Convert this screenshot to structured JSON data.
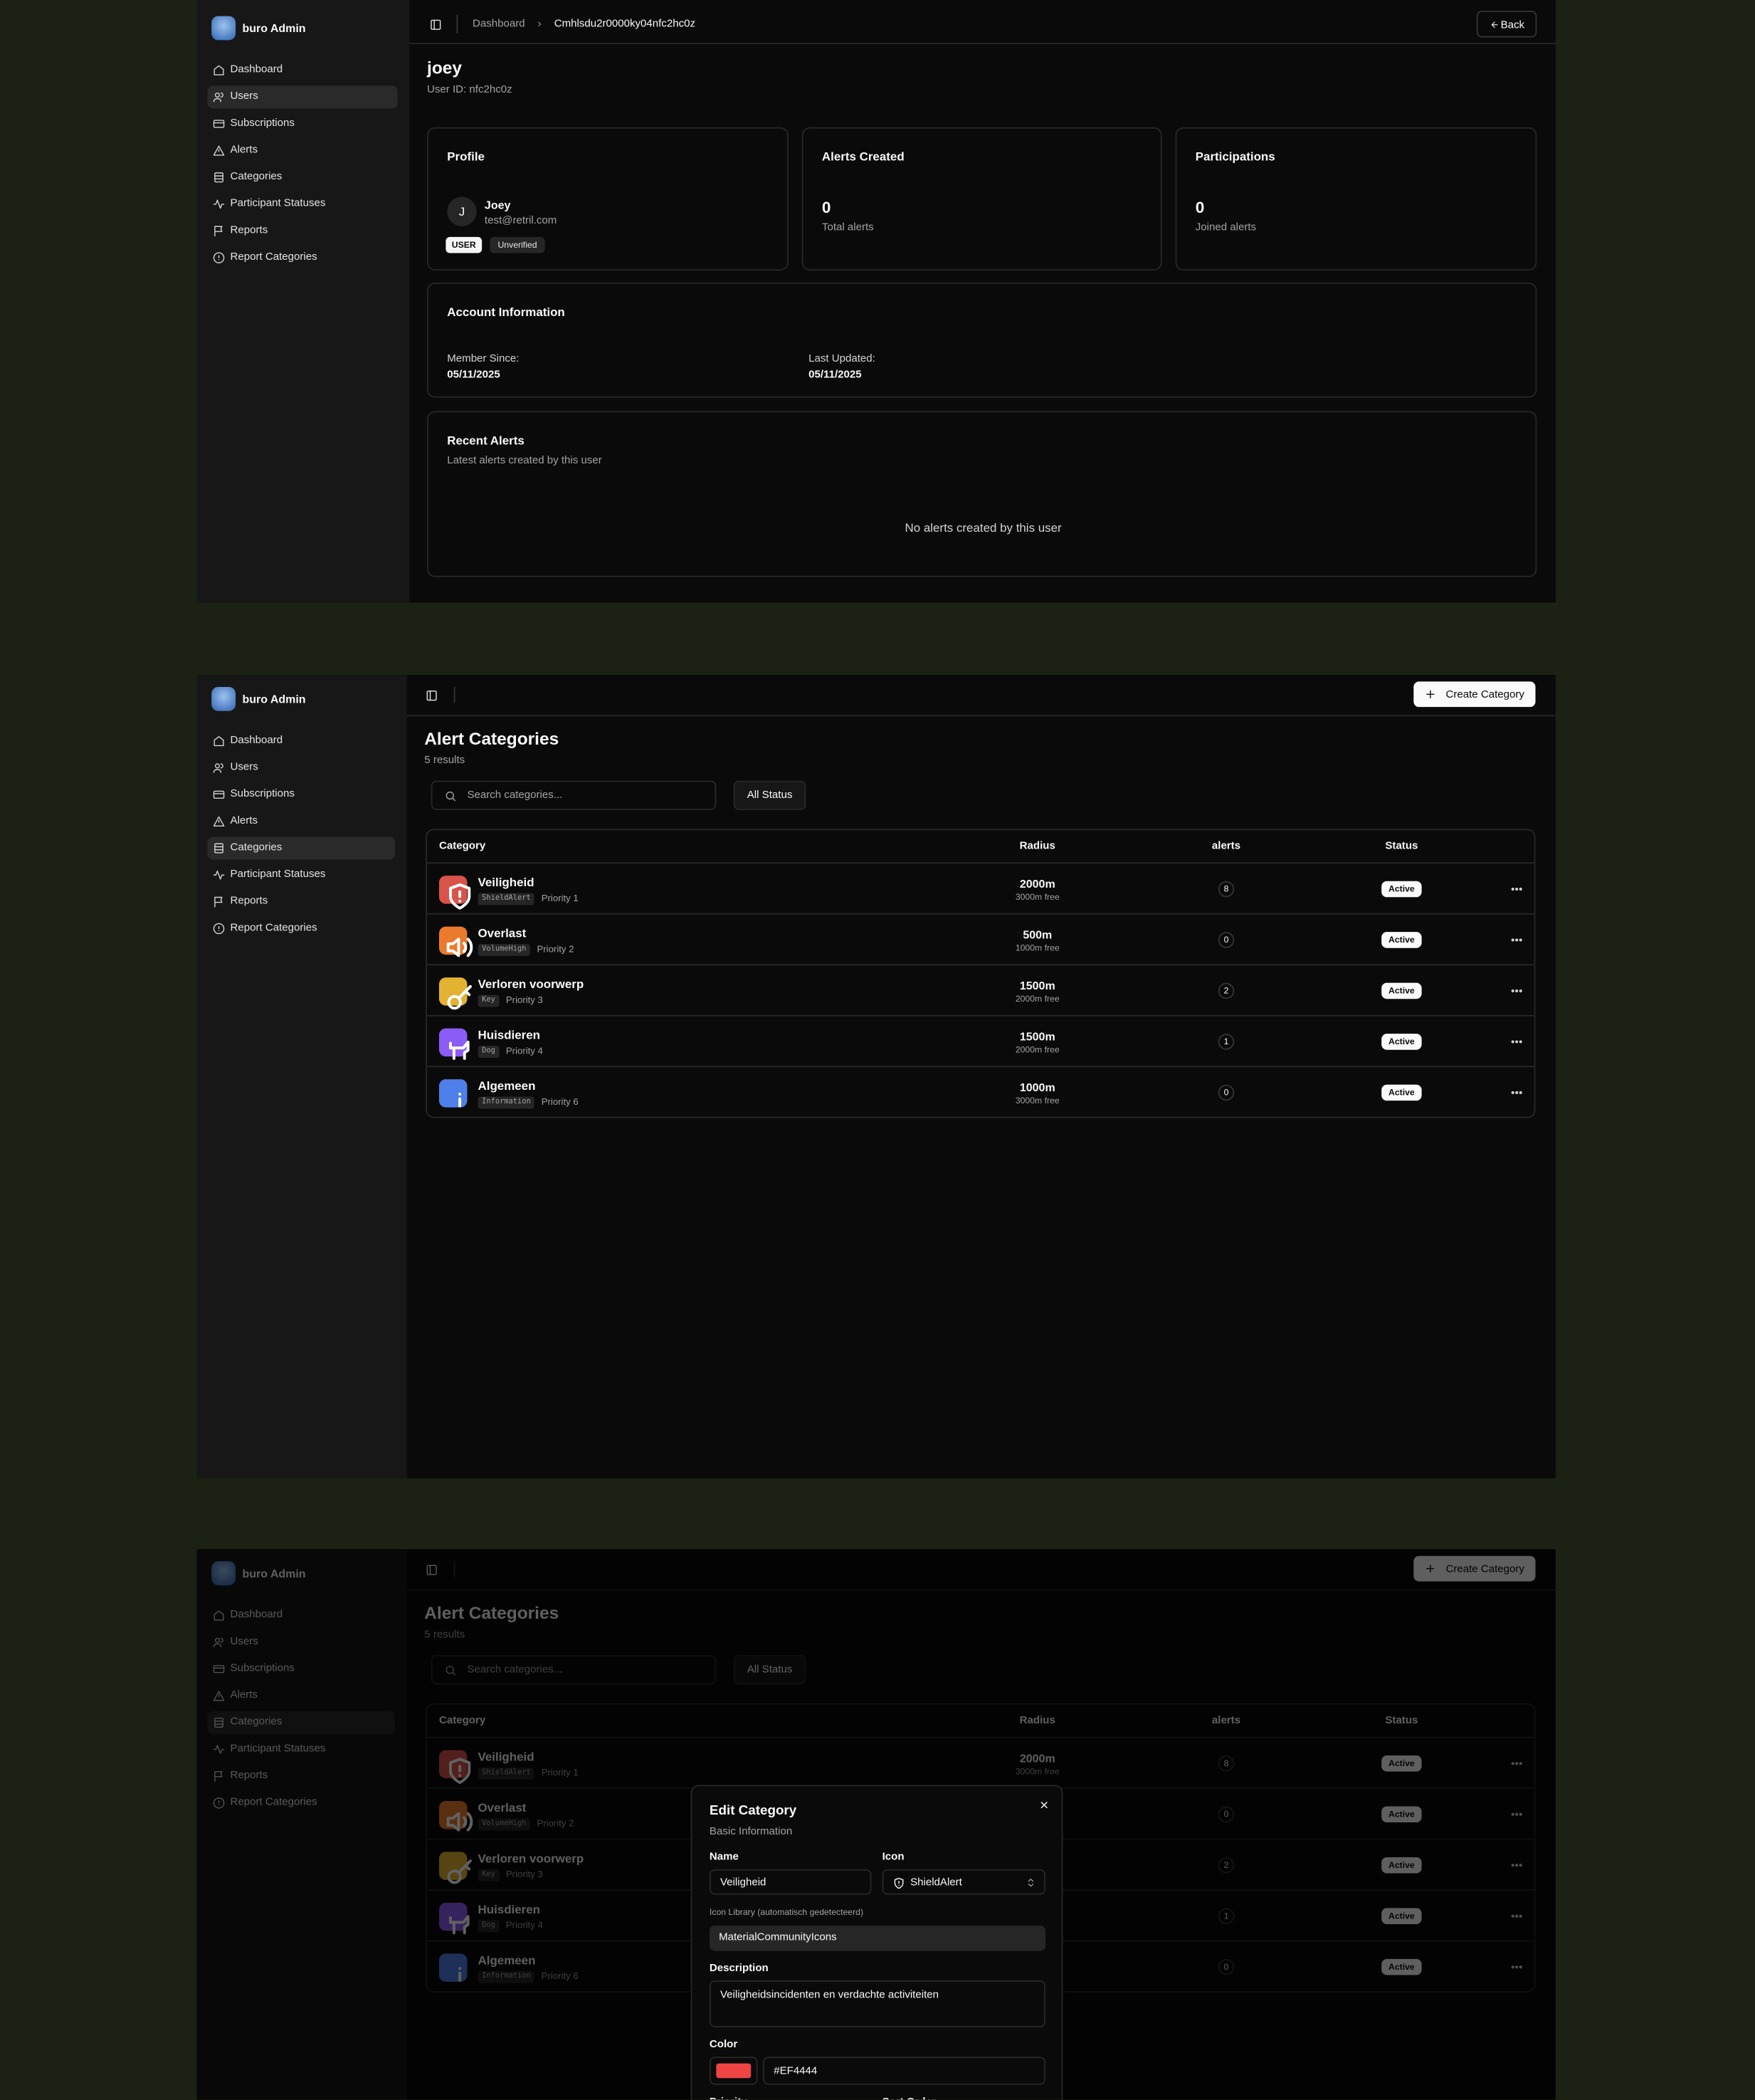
{
  "sidebar": {
    "brand": "buro Admin",
    "nav": [
      "Dashboard",
      "Users",
      "Subscriptions",
      "Alerts",
      "Categories",
      "Participant Statuses",
      "Reports",
      "Report Categories"
    ]
  },
  "user_detail": {
    "breadcrumb": [
      "Dashboard",
      "Cmhlsdu2r0000ky04nfc2hc0z"
    ],
    "back": "Back",
    "name": "joey",
    "user_id": "User ID: nfc2hc0z",
    "profile": {
      "title": "Profile",
      "avatar": "J",
      "name": "Joey",
      "email": "test@retril.com",
      "badges": [
        "USER",
        "Unverified"
      ]
    },
    "stats": [
      {
        "title": "Alerts Created",
        "value": 0,
        "caption": "Total alerts"
      },
      {
        "title": "Participations",
        "value": 0,
        "caption": "Joined alerts"
      }
    ],
    "account": {
      "title": "Account Information",
      "fields": [
        {
          "label": "Member Since:",
          "value": "05/11/2025"
        },
        {
          "label": "Last Updated:",
          "value": "05/11/2025"
        }
      ]
    },
    "recent": {
      "title": "Recent Alerts",
      "subtitle": "Latest alerts created by this user",
      "empty": "No alerts created by this user"
    }
  },
  "categories_page": {
    "create_button": "Create Category",
    "title": "Alert Categories",
    "count": "5 results",
    "search_placeholder": "Search categories...",
    "status_filter": "All Status",
    "headers": [
      "Category",
      "Radius",
      "alerts",
      "Status"
    ],
    "rows": [
      {
        "name": "Veiligheid",
        "icon": "ShieldAlert",
        "priority": "Priority 1",
        "radius": "2000m",
        "free": "3000m free",
        "alerts": 8,
        "status": "Active",
        "color": "#d9534a"
      },
      {
        "name": "Overlast",
        "icon": "VolumeHigh",
        "priority": "Priority 2",
        "radius": "500m",
        "free": "1000m free",
        "alerts": 0,
        "status": "Active",
        "color": "#ec7a2c"
      },
      {
        "name": "Verloren voorwerp",
        "icon": "Key",
        "priority": "Priority 3",
        "radius": "1500m",
        "free": "2000m free",
        "alerts": 2,
        "status": "Active",
        "color": "#e3b233"
      },
      {
        "name": "Huisdieren",
        "icon": "Dog",
        "priority": "Priority 4",
        "radius": "1500m",
        "free": "2000m free",
        "alerts": 1,
        "status": "Active",
        "color": "#8b5cf6"
      },
      {
        "name": "Algemeen",
        "icon": "Information",
        "priority": "Priority 6",
        "radius": "1000m",
        "free": "3000m free",
        "alerts": 0,
        "status": "Active",
        "color": "#4f7fe8"
      }
    ]
  },
  "edit_dialog": {
    "title": "Edit Category",
    "section": "Basic Information",
    "name_label": "Name",
    "name_value": "Veiligheid",
    "icon_label": "Icon",
    "icon_value": "ShieldAlert",
    "library_label": "Icon Library (automatisch gedetecteerd)",
    "library_value": "MaterialCommunityIcons",
    "description_label": "Description",
    "description_value": "Veiligheidsincidenten en verdachte activiteiten",
    "color_label": "Color",
    "color_value": "#EF4444",
    "priority_label": "Priority",
    "sort_label": "Sort Order"
  }
}
